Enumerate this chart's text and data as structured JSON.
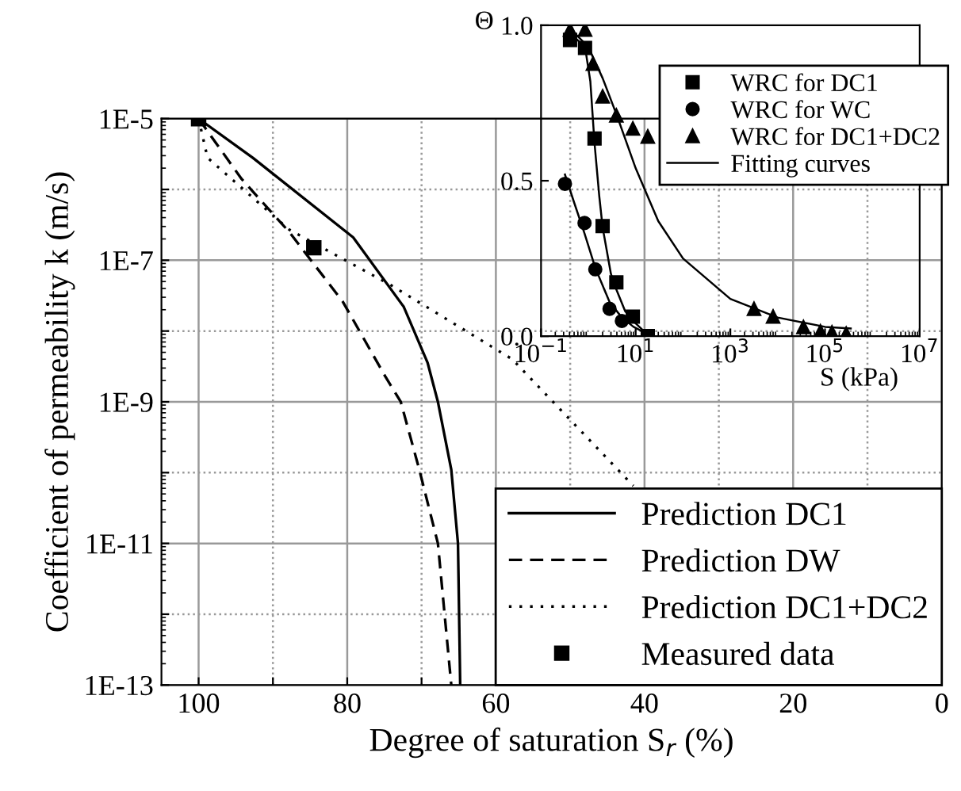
{
  "chart_data": [
    {
      "type": "line",
      "xlabel": "Degree of saturation S$_{r}$ (%)",
      "ylabel": "Coefficient of permeability k (m/s)",
      "log": "y",
      "xlim": [
        105,
        0
      ],
      "ylim": [
        1e-13,
        1e-05
      ],
      "xticks": [
        100,
        {
          "value": 90,
          "label": null
        },
        80,
        {
          "value": 70,
          "label": null
        },
        60,
        {
          "value": 50,
          "label": null
        },
        40,
        {
          "value": 30,
          "label": null
        },
        20,
        {
          "value": 10,
          "label": null
        },
        0
      ],
      "yticks": [
        {
          "value": 1e-13,
          "label": "1E-13"
        },
        {
          "value": 1e-12,
          "label": null
        },
        {
          "value": 1e-11,
          "label": "1E-11"
        },
        {
          "value": 1e-10,
          "label": null
        },
        {
          "value": 1e-09,
          "label": "1E-9"
        },
        {
          "value": 1e-08,
          "label": null
        },
        {
          "value": 1e-07,
          "label": "1E-7"
        },
        {
          "value": 1e-06,
          "label": null
        },
        {
          "value": 1e-05,
          "label": "1E-5"
        }
      ],
      "grid": true,
      "legend": "bottom right",
      "series": [
        {
          "name": "Prediction DC1",
          "color": "#000000",
          "line_style": "solid",
          "marker": "none",
          "x": [
            100,
            92.7,
            79.2,
            72.4,
            69.2,
            67.8,
            66.0,
            65.1,
            64.8
          ],
          "values": [
            1e-05,
            2.8e-06,
            2.1e-07,
            2.2e-08,
            3.6e-09,
            1e-09,
            1.1e-10,
            1e-11,
            1e-13
          ]
        },
        {
          "name": "Prediction DW",
          "color": "#000000",
          "line_style": "dashed",
          "marker": "none",
          "x": [
            100,
            94.2,
            87.8,
            80.6,
            74.9,
            72.8,
            70.3,
            67.8,
            66.0
          ],
          "values": [
            1e-05,
            1.4e-06,
            2.5e-07,
            2.6e-08,
            2.3e-09,
            1e-09,
            1.1e-10,
            1e-11,
            1e-13
          ]
        },
        {
          "name": "Prediction DC1+DC2",
          "color": "#000000",
          "line_style": "dotted",
          "marker": "none",
          "x": [
            100,
            98.8,
            87.8,
            74.2,
            57.8,
            41.5
          ],
          "values": [
            1e-05,
            2.8e-06,
            2.7e-07,
            4.5e-08,
            4e-09,
            6.5e-11
          ]
        },
        {
          "name": "Measured data",
          "type": "scatter",
          "color": "#000000",
          "marker": "square",
          "x": [
            100,
            84.5
          ],
          "values": [
            1e-05,
            1.5e-07
          ]
        }
      ]
    },
    {
      "type": "scatter",
      "xlabel": "S (kPa)",
      "ylabel": "Θ",
      "log": "x",
      "xlim": [
        0.1,
        10000000.0
      ],
      "ylim": [
        0,
        1
      ],
      "xticks": [
        {
          "value": 0.1,
          "label": "10$^{−1}$"
        },
        {
          "value": 10,
          "label": "10$^{1}$"
        },
        {
          "value": 1000,
          "label": "10$^{3}$"
        },
        {
          "value": 100000,
          "label": "10$^{5}$"
        },
        {
          "value": 10000000,
          "label": "10$^{7}$"
        }
      ],
      "yticks": [
        {
          "value": 0,
          "label": "0.0"
        },
        {
          "value": 0.5,
          "label": "0.5"
        },
        {
          "value": 1,
          "label": "1.0"
        }
      ],
      "legend": "top right",
      "series": [
        {
          "name": "WRC for DC1",
          "color": "#000000",
          "marker": "square",
          "x": [
            0.41,
            0.85,
            1.35,
            2.0,
            3.9,
            8.7,
            18
          ],
          "values": [
            0.953,
            0.927,
            0.636,
            0.354,
            0.173,
            0.063,
            0.0
          ]
        },
        {
          "name": "WRC for WC",
          "color": "#000000",
          "marker": "circle",
          "x": [
            0.32,
            0.83,
            1.4,
            2.8,
            5.1
          ],
          "values": [
            0.49,
            0.364,
            0.215,
            0.088,
            0.049
          ]
        },
        {
          "name": "WRC for DC1+DC2",
          "color": "#000000",
          "marker": "triangle",
          "x": [
            0.41,
            0.85,
            1.25,
            2.0,
            3.9,
            8.7,
            18,
            3160,
            8000,
            35000,
            80000,
            140000,
            280000
          ],
          "values": [
            0.986,
            0.986,
            0.876,
            0.771,
            0.71,
            0.668,
            0.642,
            0.088,
            0.063,
            0.029,
            0.015,
            0.012,
            0.008
          ]
        },
        {
          "name": "Fitting curves",
          "type": "line",
          "color": "#000000",
          "line_style": "solid",
          "marker": "none",
          "x": [
            0.41,
            0.85,
            1.1,
            1.35,
            1.7,
            2.0,
            3.0,
            3.9,
            6.0,
            8.7,
            14
          ],
          "values": [
            0.975,
            0.93,
            0.82,
            0.62,
            0.45,
            0.35,
            0.2,
            0.15,
            0.08,
            0.05,
            0.02
          ]
        },
        {
          "type": "line",
          "color": "#000000",
          "line_style": "solid",
          "marker": "none",
          "x": [
            0.32,
            0.5,
            0.83,
            1.4,
            2.8,
            5.1,
            9,
            14
          ],
          "values": [
            0.52,
            0.43,
            0.33,
            0.22,
            0.11,
            0.06,
            0.03,
            0.015
          ]
        },
        {
          "type": "line",
          "color": "#000000",
          "line_style": "solid",
          "marker": "none",
          "x": [
            0.41,
            1.0,
            2.0,
            4.0,
            10,
            30,
            100,
            1000,
            10000,
            100000,
            350000
          ],
          "values": [
            0.99,
            0.93,
            0.83,
            0.71,
            0.54,
            0.37,
            0.25,
            0.12,
            0.06,
            0.03,
            0.025
          ]
        }
      ]
    }
  ]
}
